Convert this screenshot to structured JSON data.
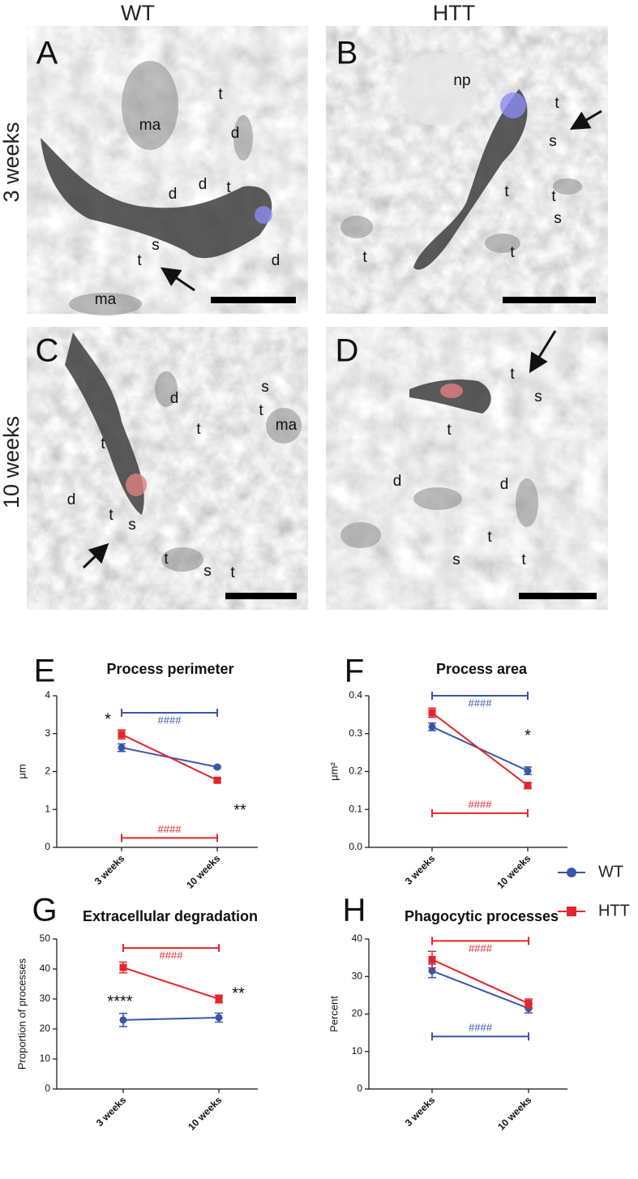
{
  "figure": {
    "column_headers": [
      "WT",
      "HTT"
    ],
    "row_labels": [
      "3 weeks",
      "10 weeks"
    ],
    "panels": [
      {
        "letter": "A",
        "labels": [
          "ma",
          "t",
          "d",
          "d",
          "d",
          "t",
          "s",
          "t",
          "ma",
          "d"
        ]
      },
      {
        "letter": "B",
        "labels": [
          "np",
          "t",
          "s",
          "t",
          "t",
          "s",
          "t",
          "t"
        ]
      },
      {
        "letter": "C",
        "labels": [
          "s",
          "d",
          "t",
          "ma",
          "t",
          "t",
          "d",
          "t",
          "s",
          "t",
          "s",
          "t"
        ]
      },
      {
        "letter": "D",
        "labels": [
          "t",
          "s",
          "t",
          "d",
          "d",
          "t",
          "s",
          "t"
        ]
      }
    ]
  },
  "chart_data": [
    {
      "type": "line",
      "letter": "E",
      "title": "Process perimeter",
      "ylabel": "μm",
      "categories": [
        "3 weeks",
        "10 weeks"
      ],
      "series": [
        {
          "name": "WT",
          "color": "#3b55a8",
          "values": [
            2.63,
            2.12
          ],
          "errors": [
            0.1,
            0.03
          ]
        },
        {
          "name": "HTT",
          "color": "#e3262b",
          "values": [
            2.98,
            1.77
          ],
          "errors": [
            0.12,
            0.05
          ]
        }
      ],
      "ylim": [
        0,
        4
      ],
      "yticks": [
        0,
        1,
        2,
        3,
        4
      ],
      "brackets": [
        {
          "label": "####",
          "color": "#3b55a8",
          "value": 3.55
        },
        {
          "label": "####",
          "color": "#e3262b",
          "value": 0.25
        }
      ],
      "annotations": [
        "*",
        "**"
      ]
    },
    {
      "type": "line",
      "letter": "F",
      "title": "Process area",
      "ylabel": "μm²",
      "categories": [
        "3 weeks",
        "10 weeks"
      ],
      "series": [
        {
          "name": "WT",
          "color": "#3b55a8",
          "values": [
            0.318,
            0.202
          ],
          "errors": [
            0.01,
            0.01
          ]
        },
        {
          "name": "HTT",
          "color": "#e3262b",
          "values": [
            0.355,
            0.163
          ],
          "errors": [
            0.012,
            0.008
          ]
        }
      ],
      "ylim": [
        0,
        0.4
      ],
      "yticks": [
        {
          "value": 0,
          "label": "0.0"
        },
        0.1,
        0.2,
        0.3,
        0.4
      ],
      "brackets": [
        {
          "label": "####",
          "color": "#3b55a8",
          "value": 0.4
        },
        {
          "label": "####",
          "color": "#e3262b",
          "value": 0.09
        }
      ],
      "annotations": [
        "*"
      ]
    },
    {
      "type": "line",
      "letter": "G",
      "title": "Extracellular degradation",
      "ylabel": "Proportion of processes",
      "categories": [
        "3 weeks",
        "10 weeks"
      ],
      "series": [
        {
          "name": "WT",
          "color": "#3b55a8",
          "values": [
            23,
            23.8
          ],
          "errors": [
            2.2,
            1.5
          ]
        },
        {
          "name": "HTT",
          "color": "#e3262b",
          "values": [
            40.5,
            30
          ],
          "errors": [
            1.8,
            1.3
          ]
        }
      ],
      "ylim": [
        0,
        50
      ],
      "yticks": [
        0,
        10,
        20,
        30,
        40,
        50
      ],
      "brackets": [
        {
          "label": "####",
          "color": "#e3262b",
          "value": 47
        }
      ],
      "annotations": [
        "****",
        "**"
      ]
    },
    {
      "type": "line",
      "letter": "H",
      "title": "Phagocytic processes",
      "ylabel": "Percent",
      "categories": [
        "3 weeks",
        "10 weeks"
      ],
      "series": [
        {
          "name": "WT",
          "color": "#3b55a8",
          "values": [
            31.5,
            21.5
          ],
          "errors": [
            1.8,
            1.2
          ]
        },
        {
          "name": "HTT",
          "color": "#e3262b",
          "values": [
            34.5,
            22.8
          ],
          "errors": [
            2.2,
            1.2
          ]
        }
      ],
      "ylim": [
        0,
        40
      ],
      "yticks": [
        0,
        10,
        20,
        30,
        40
      ],
      "brackets": [
        {
          "label": "####",
          "color": "#e3262b",
          "value": 39.5
        },
        {
          "label": "####",
          "color": "#3b55a8",
          "value": 14
        }
      ]
    }
  ]
}
